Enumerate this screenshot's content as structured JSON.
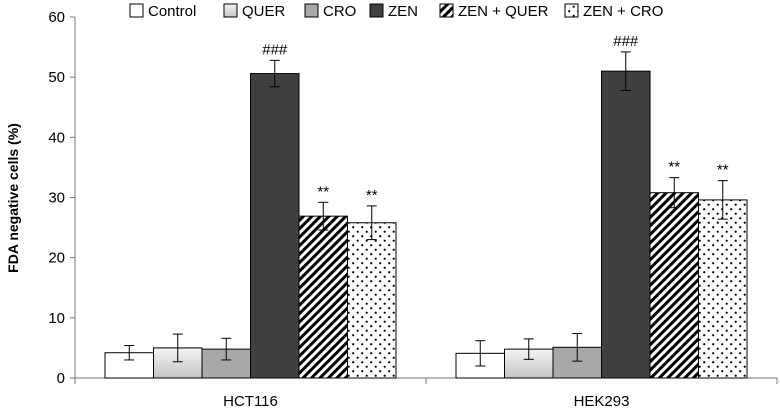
{
  "chart_data": {
    "type": "bar",
    "ylabel": "FDA negative cells (%)",
    "ylim": [
      0,
      60
    ],
    "yticks": [
      0,
      10,
      20,
      30,
      40,
      50,
      60
    ],
    "grid": false,
    "legend_position": "top",
    "categories": [
      "HCT116",
      "HEK293"
    ],
    "series": [
      {
        "name": "Control",
        "pattern": "none",
        "fill": "#ffffff",
        "values": [
          4.2,
          4.1
        ],
        "errors": [
          1.2,
          2.1
        ],
        "annotations": [
          "",
          ""
        ]
      },
      {
        "name": "QUER",
        "pattern": "gradient",
        "fill": "#d2d2d2",
        "values": [
          5.0,
          4.8
        ],
        "errors": [
          2.3,
          1.7
        ],
        "annotations": [
          "",
          ""
        ]
      },
      {
        "name": "CRO",
        "pattern": "none",
        "fill": "#a8a8a8",
        "values": [
          4.8,
          5.1
        ],
        "errors": [
          1.8,
          2.3
        ],
        "annotations": [
          "",
          ""
        ]
      },
      {
        "name": "ZEN",
        "pattern": "none",
        "fill": "#404040",
        "values": [
          50.6,
          51.0
        ],
        "errors": [
          2.2,
          3.2
        ],
        "annotations": [
          "###",
          "###"
        ]
      },
      {
        "name": "ZEN + QUER",
        "pattern": "diagonal",
        "fill": "#ffffff",
        "values": [
          26.9,
          30.8
        ],
        "errors": [
          2.3,
          2.5
        ],
        "annotations": [
          "**",
          "**"
        ]
      },
      {
        "name": "ZEN + CRO",
        "pattern": "dots",
        "fill": "#ffffff",
        "values": [
          25.8,
          29.6
        ],
        "errors": [
          2.8,
          3.2
        ],
        "annotations": [
          "**",
          "**"
        ]
      }
    ]
  }
}
